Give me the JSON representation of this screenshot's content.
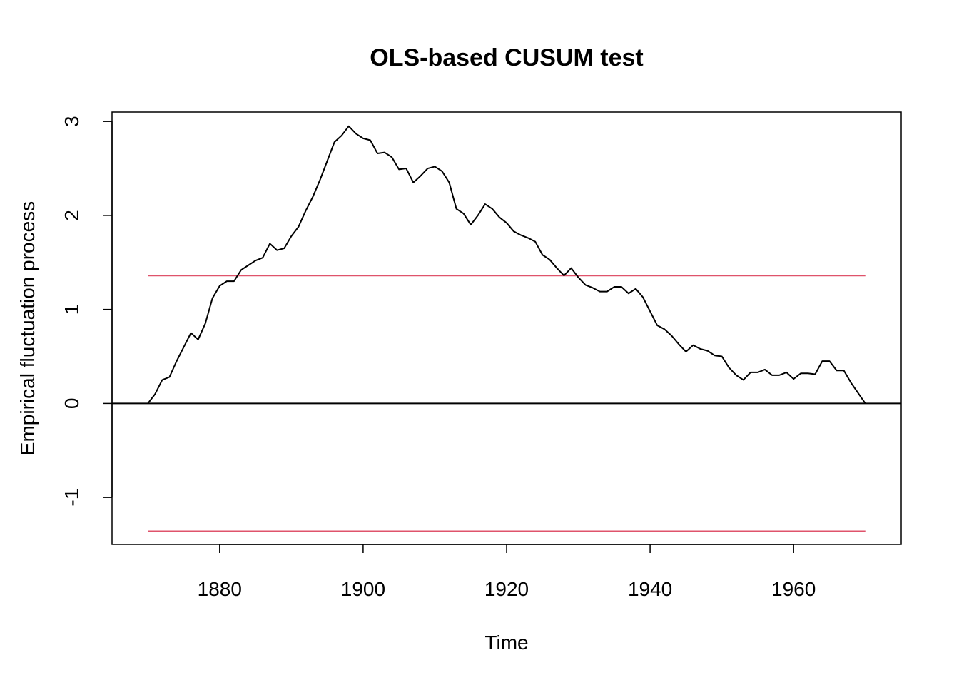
{
  "chart_data": {
    "type": "line",
    "title": "OLS-based CUSUM test",
    "xlabel": "Time",
    "ylabel": "Empirical fluctuation process",
    "xlim": [
      1865,
      1975
    ],
    "ylim": [
      -1.5,
      3.1
    ],
    "x_ticks": [
      "1880",
      "1900",
      "1920",
      "1940",
      "1960"
    ],
    "x_tick_values": [
      1880,
      1900,
      1920,
      1940,
      1960
    ],
    "y_ticks": [
      "-1",
      "0",
      "1",
      "2",
      "3"
    ],
    "y_tick_values": [
      -1,
      0,
      1,
      2,
      3
    ],
    "grid": false,
    "reference_lines": [
      {
        "value": 0,
        "x_range": [
          1865,
          1975
        ],
        "color": "#000000"
      },
      {
        "value": 1.358,
        "x_range": [
          1870,
          1970
        ],
        "color": "#DF536B"
      },
      {
        "value": -1.358,
        "x_range": [
          1870,
          1970
        ],
        "color": "#DF536B"
      }
    ],
    "series": [
      {
        "color": "#000000",
        "x": [
          1870,
          1871,
          1872,
          1873,
          1874,
          1875,
          1876,
          1877,
          1878,
          1879,
          1880,
          1881,
          1882,
          1883,
          1884,
          1885,
          1886,
          1887,
          1888,
          1889,
          1890,
          1891,
          1892,
          1893,
          1894,
          1895,
          1896,
          1897,
          1898,
          1899,
          1900,
          1901,
          1902,
          1903,
          1904,
          1905,
          1906,
          1907,
          1908,
          1909,
          1910,
          1911,
          1912,
          1913,
          1914,
          1915,
          1916,
          1917,
          1918,
          1919,
          1920,
          1921,
          1922,
          1923,
          1924,
          1925,
          1926,
          1927,
          1928,
          1929,
          1930,
          1931,
          1932,
          1933,
          1934,
          1935,
          1936,
          1937,
          1938,
          1939,
          1940,
          1941,
          1942,
          1943,
          1944,
          1945,
          1946,
          1947,
          1948,
          1949,
          1950,
          1951,
          1952,
          1953,
          1954,
          1955,
          1956,
          1957,
          1958,
          1959,
          1960,
          1961,
          1962,
          1963,
          1964,
          1965,
          1966,
          1967,
          1968,
          1969,
          1970
        ],
        "values": [
          0.0,
          0.1,
          0.25,
          0.28,
          0.45,
          0.6,
          0.75,
          0.68,
          0.85,
          1.12,
          1.25,
          1.3,
          1.3,
          1.42,
          1.47,
          1.52,
          1.55,
          1.7,
          1.63,
          1.65,
          1.78,
          1.88,
          2.05,
          2.2,
          2.38,
          2.58,
          2.78,
          2.85,
          2.95,
          2.87,
          2.82,
          2.8,
          2.66,
          2.67,
          2.62,
          2.49,
          2.5,
          2.35,
          2.42,
          2.5,
          2.52,
          2.47,
          2.35,
          2.07,
          2.02,
          1.9,
          2.0,
          2.12,
          2.07,
          1.98,
          1.92,
          1.83,
          1.79,
          1.76,
          1.72,
          1.58,
          1.53,
          1.44,
          1.36,
          1.44,
          1.34,
          1.26,
          1.23,
          1.19,
          1.19,
          1.24,
          1.24,
          1.17,
          1.22,
          1.13,
          0.98,
          0.83,
          0.79,
          0.72,
          0.63,
          0.55,
          0.62,
          0.58,
          0.56,
          0.51,
          0.5,
          0.38,
          0.3,
          0.25,
          0.33,
          0.33,
          0.36,
          0.3,
          0.3,
          0.33,
          0.26,
          0.32,
          0.32,
          0.31,
          0.45,
          0.45,
          0.35,
          0.35,
          0.22,
          0.11,
          0.0
        ]
      }
    ]
  }
}
